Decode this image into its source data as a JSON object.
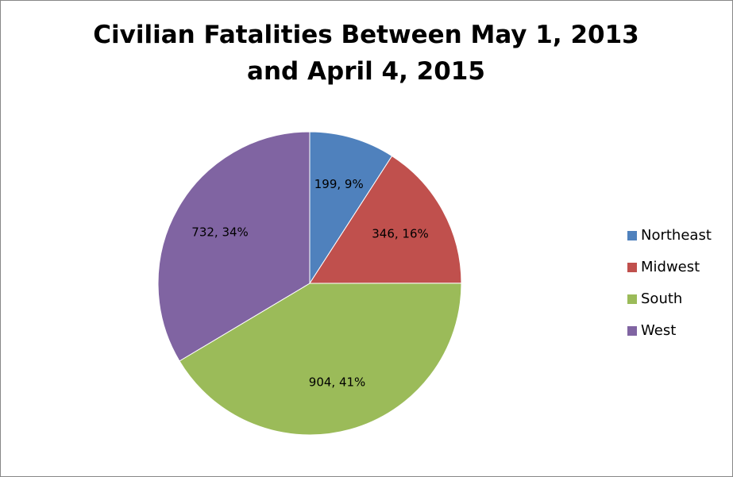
{
  "chart_data": {
    "type": "pie",
    "title": "Civilian Fatalities Between May 1, 2013 and April 4, 2015",
    "categories": [
      "Northeast",
      "Midwest",
      "South",
      "West"
    ],
    "values": [
      199,
      346,
      904,
      732
    ],
    "value_labels": [
      "199, 9%",
      "346, 16%",
      "904, 41%",
      "732, 34%"
    ],
    "colors": [
      "#4f81bd",
      "#c0504d",
      "#9bbb59",
      "#8064a2"
    ],
    "legend": "right"
  }
}
